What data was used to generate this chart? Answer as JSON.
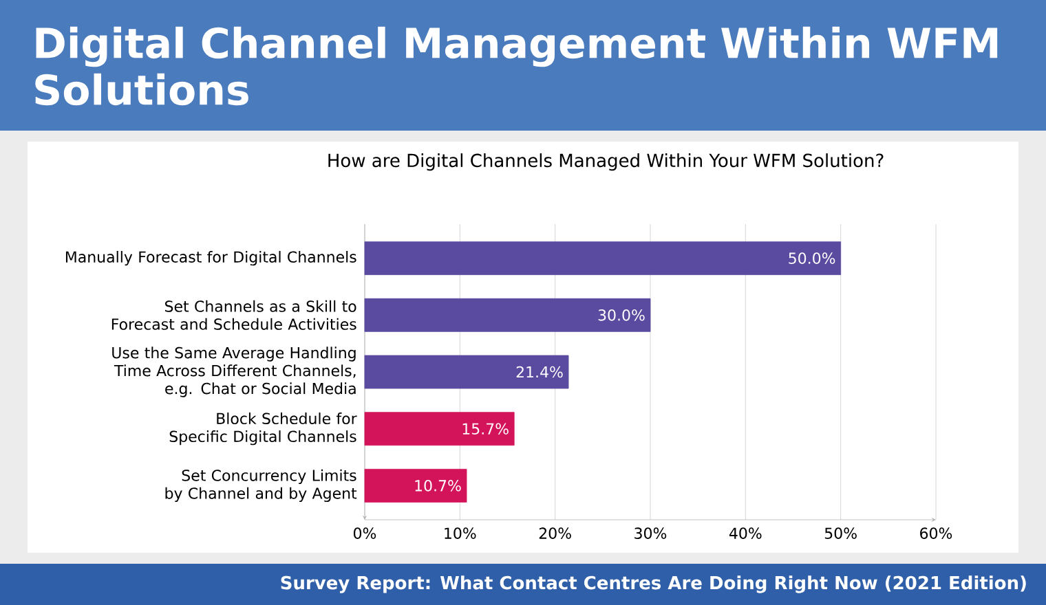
{
  "chart_data": {
    "type": "bar",
    "orientation": "horizontal",
    "title": "Digital Channel Management Within WFM Solutions",
    "subtitle": "How are Digital Channels Managed Within Your WFM Solution?",
    "annotations": [
      "Survey Report: What Contact Centres Are Doing Right Now (2021 Edition)"
    ],
    "categories": [
      "Manually Forecast for Digital Channels",
      "Set Channels as a Skill to Forecast and Schedule Activities",
      "Use the Same Average Handling Time Across Different Channels, e.g. Chat or Social Media",
      "Block Schedule for Specific Digital Channels",
      "Set Concurrency Limits by Channel and by Agent"
    ],
    "values": [
      50.0,
      30.0,
      21.4,
      15.7,
      10.7
    ],
    "value_labels": [
      "50.0%",
      "30.0%",
      "21.4%",
      "15.7%",
      "10.7%"
    ],
    "colors": [
      "#5a4aa0",
      "#5a4aa0",
      "#5a4aa0",
      "#d4145a",
      "#d4145a"
    ],
    "xlim": [
      0,
      60
    ],
    "xticks": [
      {
        "value": 0,
        "label": "0%"
      },
      {
        "value": 10,
        "label": "10%"
      },
      {
        "value": 20,
        "label": "20%"
      },
      {
        "value": 30,
        "label": "30%"
      },
      {
        "value": 40,
        "label": "40%"
      },
      {
        "value": 50,
        "label": "50%"
      },
      {
        "value": 60,
        "label": "60%"
      }
    ],
    "grid": "x"
  }
}
